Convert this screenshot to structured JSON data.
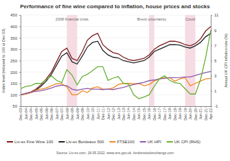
{
  "chart_data": {
    "type": "line",
    "title": "Performance of fine wine compared to inflation, house prices and stocks",
    "y_label": "Index level (rebased to 100 at Dec 03)",
    "y2_label": "Annual UK CPI inflation rate (%)",
    "source": "Source: Liv-ex.com, 18.05.2022, www.ons.gov.uk, londonstockexchange.com",
    "categories": [
      "Dec-03",
      "Jun-04",
      "Dec-04",
      "Jun-05",
      "Dec-05",
      "Jun-06",
      "Dec-06",
      "Jun-07",
      "Dec-07",
      "Jun-08",
      "Dec-08",
      "Jun-09",
      "Dec-09",
      "Jun-10",
      "Dec-10",
      "Jun-11",
      "Dec-11",
      "Jun-12",
      "Dec-12",
      "Jun-13",
      "Dec-13",
      "Jun-14",
      "Dec-14",
      "Jun-15",
      "Dec-15",
      "Jun-16",
      "Dec-16",
      "Jun-17",
      "Dec-17",
      "Jun-18",
      "Dec-18",
      "Jun-19",
      "Dec-19",
      "Jun-20",
      "Dec-20",
      "Jun-21",
      "Dec-21",
      "Apr-22"
    ],
    "series": [
      {
        "name": "Liv-ex Fine Wine 100",
        "color": "#7b1a1a",
        "values": [
          100,
          105,
          112,
          125,
          145,
          170,
          200,
          245,
          290,
          305,
          260,
          250,
          290,
          340,
          360,
          370,
          320,
          300,
          285,
          280,
          265,
          255,
          250,
          255,
          260,
          275,
          300,
          315,
          325,
          335,
          335,
          330,
          320,
          315,
          325,
          345,
          380,
          400
        ]
      },
      {
        "name": "Liv-ex Bordeaux 500",
        "color": "#222222",
        "values": [
          100,
          104,
          110,
          120,
          138,
          160,
          190,
          230,
          270,
          285,
          245,
          235,
          270,
          310,
          330,
          335,
          295,
          275,
          265,
          262,
          250,
          245,
          240,
          245,
          250,
          265,
          290,
          300,
          310,
          320,
          320,
          318,
          310,
          305,
          315,
          330,
          355,
          370
        ]
      },
      {
        "name": "FTSE100",
        "color": "#f08a24",
        "values": [
          100,
          103,
          110,
          120,
          125,
          130,
          140,
          148,
          148,
          135,
          100,
          100,
          118,
          110,
          130,
          135,
          125,
          125,
          130,
          145,
          150,
          150,
          148,
          150,
          140,
          145,
          160,
          170,
          175,
          175,
          160,
          170,
          175,
          140,
          150,
          160,
          170,
          172
        ]
      },
      {
        "name": "UK HPI",
        "color": "#8e5aa8",
        "values": [
          100,
          107,
          112,
          115,
          118,
          123,
          130,
          138,
          142,
          140,
          125,
          120,
          125,
          128,
          125,
          125,
          123,
          125,
          123,
          128,
          132,
          140,
          145,
          150,
          155,
          162,
          165,
          170,
          172,
          175,
          175,
          176,
          178,
          178,
          185,
          192,
          198,
          202
        ]
      },
      {
        "name": "UK CPI (RHS)",
        "color": "#66b032",
        "axis": "y2",
        "values": [
          1.3,
          1.6,
          1.7,
          2.0,
          2.0,
          2.5,
          3.0,
          2.4,
          2.1,
          3.8,
          3.1,
          1.8,
          2.9,
          3.2,
          3.7,
          4.2,
          4.2,
          2.4,
          2.7,
          2.9,
          2.0,
          1.9,
          0.5,
          0.0,
          0.2,
          0.5,
          1.6,
          2.6,
          3.0,
          2.4,
          2.1,
          2.0,
          1.3,
          0.6,
          0.6,
          2.5,
          5.4,
          9.0
        ]
      }
    ],
    "ylim": [
      50,
      450
    ],
    "yticks": [
      50,
      100,
      150,
      200,
      250,
      300,
      350,
      400,
      450
    ],
    "y2lim": [
      -1,
      11
    ],
    "y2ticks": [
      -1,
      1,
      3,
      5,
      7,
      9,
      11
    ],
    "annotations": [
      {
        "text": "2008 financial crisis",
        "start": "Jun-08",
        "end": "Jun-09"
      },
      {
        "text": "Brexit uncertainty",
        "start": "Jun-16",
        "end": "Dec-16"
      },
      {
        "text": "Covid",
        "start": "Dec-19",
        "end": "Dec-20"
      }
    ],
    "grid": true,
    "legend": "bottom"
  }
}
